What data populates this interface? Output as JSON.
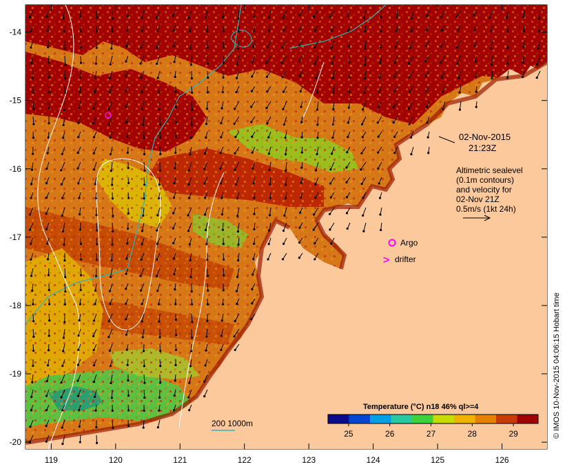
{
  "map": {
    "lon_range": [
      118.6,
      126.7
    ],
    "lat_range": [
      -20.1,
      -13.6
    ],
    "x_ticks": [
      "119",
      "120",
      "121",
      "122",
      "123",
      "124",
      "125",
      "126"
    ],
    "y_ticks": [
      "-14",
      "-15",
      "-16",
      "-17",
      "-18",
      "-19",
      "-20"
    ],
    "land_color": "#fbc99b",
    "deep_sst_color": "#a30000",
    "isobath_color": "#2bb5b5",
    "arrow_color": "#000000"
  },
  "annotation": {
    "date": "02-Nov-2015",
    "time": "21:23Z",
    "desc_line1": "Altimetric sealevel",
    "desc_line2": "(0.1m contours)",
    "desc_line3": "and velocity for",
    "desc_line4": "02-Nov 21Z",
    "desc_line5": "0.5m/s (1kt 24h)"
  },
  "legend": {
    "argo_label": "Argo",
    "drifter_label": "drifter",
    "marker_color": "#ff00ff",
    "isobath_label": "200  1000m"
  },
  "colorbar": {
    "title": "Temperature (°C) n18 46% ql>=4",
    "ticks": [
      "25",
      "26",
      "27",
      "28",
      "29"
    ],
    "tick_values": [
      25,
      26,
      27,
      28,
      29
    ],
    "range": [
      24.5,
      29.6
    ],
    "colors": [
      "#0a0a8c",
      "#0046d2",
      "#00a0e6",
      "#28c8a0",
      "#3cd23c",
      "#c8dc00",
      "#f0b400",
      "#e68200",
      "#c83c00",
      "#a00000"
    ]
  },
  "credit": "© IMOS 10-Nov-2015 04:06:15 Hobart time"
}
